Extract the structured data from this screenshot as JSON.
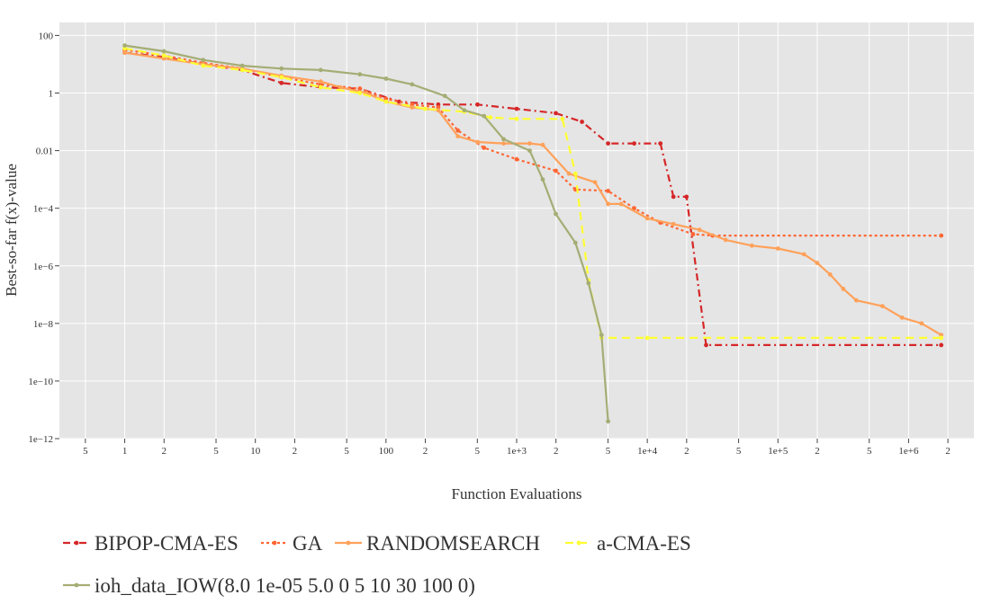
{
  "chart_data": {
    "type": "line",
    "xlabel": "Function Evaluations",
    "ylabel": "Best-so-far f(x)-value",
    "xscale": "log",
    "yscale": "log",
    "xlim_log10": [
      -0.5,
      6.5
    ],
    "ylim_log10": [
      -12,
      2.45
    ],
    "grid": true,
    "background": "#e5e5e5",
    "legend_placement": "bottom-left",
    "x_ticks": [
      {
        "log": -0.30103,
        "label": "5"
      },
      {
        "log": 0,
        "label": "1"
      },
      {
        "log": 0.30103,
        "label": "2"
      },
      {
        "log": 0.69897,
        "label": "5"
      },
      {
        "log": 1,
        "label": "10"
      },
      {
        "log": 1.30103,
        "label": "2"
      },
      {
        "log": 1.69897,
        "label": "5"
      },
      {
        "log": 2,
        "label": "100"
      },
      {
        "log": 2.30103,
        "label": "2"
      },
      {
        "log": 2.69897,
        "label": "5"
      },
      {
        "log": 3,
        "label": "1e+3"
      },
      {
        "log": 3.30103,
        "label": "2"
      },
      {
        "log": 3.69897,
        "label": "5"
      },
      {
        "log": 4,
        "label": "1e+4"
      },
      {
        "log": 4.30103,
        "label": "2"
      },
      {
        "log": 4.69897,
        "label": "5"
      },
      {
        "log": 5,
        "label": "1e+5"
      },
      {
        "log": 5.30103,
        "label": "2"
      },
      {
        "log": 5.69897,
        "label": "5"
      },
      {
        "log": 6,
        "label": "1e+6"
      },
      {
        "log": 6.30103,
        "label": "2"
      }
    ],
    "y_ticks": [
      {
        "log": 2,
        "label": "100"
      },
      {
        "log": 0,
        "label": "1"
      },
      {
        "log": -2,
        "label": "0.01"
      },
      {
        "log": -4,
        "label": "1e−4"
      },
      {
        "log": -6,
        "label": "1e−6"
      },
      {
        "log": -8,
        "label": "1e−8"
      },
      {
        "log": -10,
        "label": "1e−10"
      },
      {
        "log": -12,
        "label": "1e−12"
      }
    ],
    "series": [
      {
        "name": "BIPOP-CMA-ES",
        "color": "#d62728",
        "dash": "8,4,2,4",
        "width": 2.2,
        "points": [
          [
            0,
            1.4
          ],
          [
            0.3,
            1.25
          ],
          [
            0.6,
            1.0
          ],
          [
            0.9,
            0.8
          ],
          [
            1.2,
            0.35
          ],
          [
            1.5,
            0.2
          ],
          [
            1.8,
            0.15
          ],
          [
            2.1,
            -0.3
          ],
          [
            2.4,
            -0.4
          ],
          [
            2.7,
            -0.4
          ],
          [
            3.0,
            -0.55
          ],
          [
            3.3,
            -0.7
          ],
          [
            3.5,
            -1.0
          ],
          [
            3.7,
            -1.75
          ],
          [
            3.9,
            -1.75
          ],
          [
            4.1,
            -1.75
          ],
          [
            4.2,
            -3.6
          ],
          [
            4.3,
            -3.6
          ],
          [
            4.45,
            -8.75
          ],
          [
            6.25,
            -8.75
          ]
        ]
      },
      {
        "name": "GA",
        "color": "#ff6633",
        "dash": "3,3",
        "width": 2.2,
        "points": [
          [
            0,
            1.5
          ],
          [
            0.3,
            1.3
          ],
          [
            0.6,
            1.05
          ],
          [
            0.9,
            0.85
          ],
          [
            1.2,
            0.55
          ],
          [
            1.5,
            0.3
          ],
          [
            1.8,
            0.15
          ],
          [
            2.0,
            -0.2
          ],
          [
            2.2,
            -0.4
          ],
          [
            2.4,
            -0.5
          ],
          [
            2.55,
            -1.3
          ],
          [
            2.75,
            -1.9
          ],
          [
            3.0,
            -2.3
          ],
          [
            3.3,
            -2.7
          ],
          [
            3.45,
            -3.35
          ],
          [
            3.7,
            -3.4
          ],
          [
            3.9,
            -4.0
          ],
          [
            4.1,
            -4.5
          ],
          [
            4.35,
            -4.9
          ],
          [
            4.5,
            -4.95
          ],
          [
            6.25,
            -4.95
          ]
        ]
      },
      {
        "name": "RANDOMSEARCH",
        "color": "#ffa15a",
        "dash": "",
        "width": 2.2,
        "points": [
          [
            0,
            1.4
          ],
          [
            0.3,
            1.2
          ],
          [
            0.6,
            1.0
          ],
          [
            0.9,
            0.85
          ],
          [
            1.2,
            0.6
          ],
          [
            1.5,
            0.4
          ],
          [
            1.65,
            0.2
          ],
          [
            1.85,
            0.0
          ],
          [
            2.0,
            -0.3
          ],
          [
            2.2,
            -0.5
          ],
          [
            2.4,
            -0.6
          ],
          [
            2.55,
            -1.5
          ],
          [
            2.7,
            -1.7
          ],
          [
            2.9,
            -1.75
          ],
          [
            3.1,
            -1.75
          ],
          [
            3.2,
            -1.8
          ],
          [
            3.4,
            -2.8
          ],
          [
            3.6,
            -3.1
          ],
          [
            3.7,
            -3.85
          ],
          [
            3.8,
            -3.85
          ],
          [
            4.0,
            -4.35
          ],
          [
            4.2,
            -4.55
          ],
          [
            4.4,
            -4.75
          ],
          [
            4.6,
            -5.1
          ],
          [
            4.8,
            -5.3
          ],
          [
            5.0,
            -5.4
          ],
          [
            5.2,
            -5.6
          ],
          [
            5.3,
            -5.9
          ],
          [
            5.4,
            -6.3
          ],
          [
            5.5,
            -6.8
          ],
          [
            5.6,
            -7.2
          ],
          [
            5.8,
            -7.4
          ],
          [
            5.95,
            -7.8
          ],
          [
            6.1,
            -8.0
          ],
          [
            6.25,
            -8.4
          ]
        ]
      },
      {
        "name": "a-CMA-ES",
        "color": "#ffff33",
        "dash": "9,6",
        "width": 2.2,
        "points": [
          [
            0,
            1.55
          ],
          [
            0.3,
            1.3
          ],
          [
            0.6,
            0.95
          ],
          [
            0.9,
            0.8
          ],
          [
            1.2,
            0.55
          ],
          [
            1.5,
            0.2
          ],
          [
            1.8,
            0.0
          ],
          [
            2.0,
            -0.3
          ],
          [
            2.3,
            -0.55
          ],
          [
            2.6,
            -0.65
          ],
          [
            2.8,
            -0.85
          ],
          [
            3.0,
            -0.9
          ],
          [
            3.35,
            -0.9
          ],
          [
            3.45,
            -2.8
          ],
          [
            3.55,
            -6.5
          ],
          [
            3.65,
            -8.5
          ],
          [
            4.0,
            -8.5
          ],
          [
            6.25,
            -8.5
          ]
        ]
      },
      {
        "name": "ioh_data_IOW(8.0 1e-05 5.0 0 5 10 30 100 0)",
        "color": "#a5ad75",
        "dash": "",
        "width": 2.2,
        "points": [
          [
            0,
            1.65
          ],
          [
            0.3,
            1.45
          ],
          [
            0.6,
            1.15
          ],
          [
            0.9,
            0.95
          ],
          [
            1.2,
            0.85
          ],
          [
            1.5,
            0.8
          ],
          [
            1.8,
            0.65
          ],
          [
            2.0,
            0.5
          ],
          [
            2.2,
            0.3
          ],
          [
            2.45,
            -0.1
          ],
          [
            2.6,
            -0.6
          ],
          [
            2.75,
            -0.8
          ],
          [
            2.9,
            -1.6
          ],
          [
            3.1,
            -2.0
          ],
          [
            3.2,
            -3.0
          ],
          [
            3.3,
            -4.2
          ],
          [
            3.45,
            -5.2
          ],
          [
            3.55,
            -6.6
          ],
          [
            3.65,
            -8.4
          ],
          [
            3.7,
            -11.4
          ]
        ]
      }
    ]
  }
}
